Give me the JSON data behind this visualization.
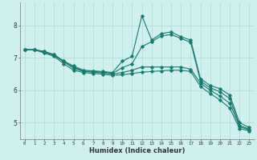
{
  "xlabel": "Humidex (Indice chaleur)",
  "background_color": "#cff0ee",
  "grid_color": "#b0ddd8",
  "line_color": "#1a7a6e",
  "xlim": [
    -0.5,
    23.5
  ],
  "ylim": [
    4.5,
    8.7
  ],
  "yticks": [
    5,
    6,
    7,
    8
  ],
  "xticks": [
    0,
    1,
    2,
    3,
    4,
    5,
    6,
    7,
    8,
    9,
    10,
    11,
    12,
    13,
    14,
    15,
    16,
    17,
    18,
    19,
    20,
    21,
    22,
    23
  ],
  "series": [
    [
      7.25,
      7.25,
      7.2,
      7.1,
      6.9,
      6.75,
      6.62,
      6.6,
      6.58,
      6.55,
      6.9,
      7.05,
      8.3,
      7.55,
      7.75,
      7.8,
      7.65,
      7.55,
      6.35,
      6.15,
      6.05,
      5.85,
      5.0,
      4.85
    ],
    [
      7.25,
      7.25,
      7.2,
      7.1,
      6.9,
      6.72,
      6.6,
      6.58,
      6.56,
      6.52,
      6.7,
      6.82,
      7.35,
      7.5,
      7.68,
      7.72,
      7.6,
      7.48,
      6.28,
      6.08,
      5.95,
      5.75,
      4.92,
      4.8
    ],
    [
      7.25,
      7.25,
      7.18,
      7.08,
      6.88,
      6.68,
      6.58,
      6.56,
      6.54,
      6.5,
      6.55,
      6.62,
      6.72,
      6.72,
      6.72,
      6.72,
      6.72,
      6.65,
      6.22,
      6.0,
      5.82,
      5.6,
      4.88,
      4.78
    ],
    [
      7.25,
      7.25,
      7.15,
      7.05,
      6.82,
      6.62,
      6.55,
      6.52,
      6.5,
      6.46,
      6.48,
      6.52,
      6.56,
      6.58,
      6.6,
      6.62,
      6.62,
      6.58,
      6.12,
      5.9,
      5.7,
      5.45,
      4.82,
      4.75
    ]
  ]
}
